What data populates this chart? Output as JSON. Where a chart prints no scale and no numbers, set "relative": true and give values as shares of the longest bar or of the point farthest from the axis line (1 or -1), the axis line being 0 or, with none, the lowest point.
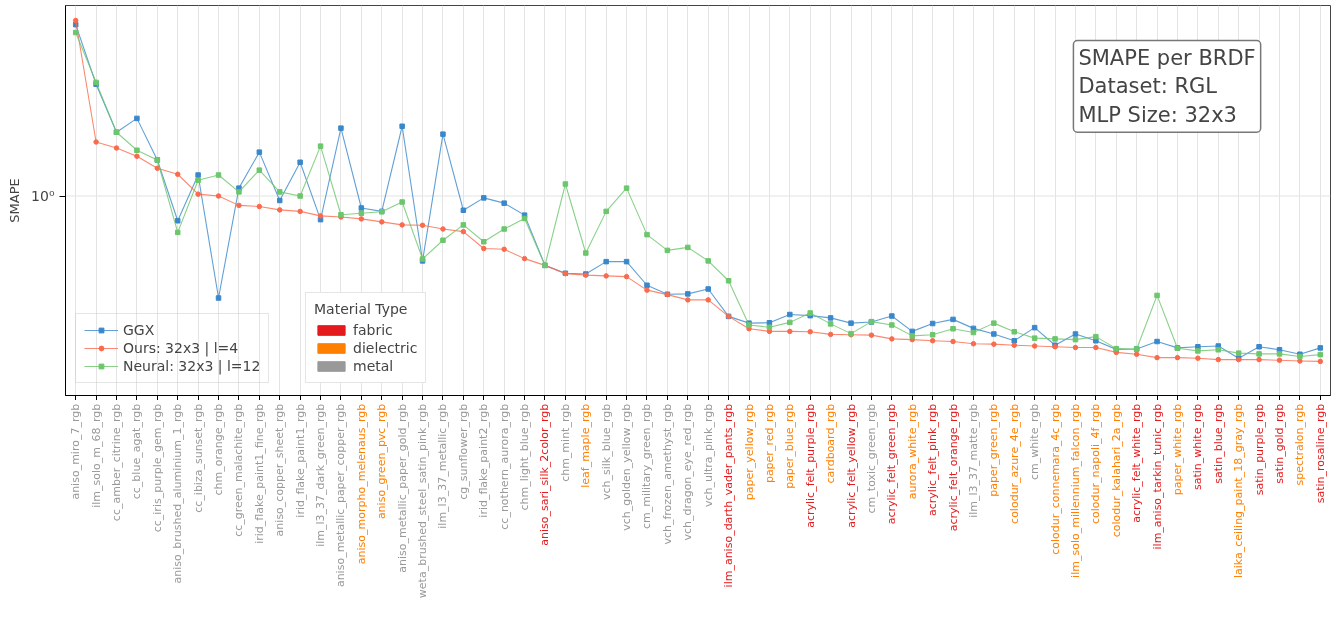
{
  "chart_data": {
    "type": "line",
    "title": "SMAPE per BRDF\nDataset: RGL\nMLP Size: 32x3",
    "ylabel": "SMAPE",
    "legend_title": "Material Type",
    "legend": "bottom left",
    "relative": true,
    "grid": "x",
    "ref_lines": [
      {
        "axis": "y",
        "value": 0.532,
        "label": "10⁰",
        "color": "#e4e4e4"
      }
    ],
    "categories": [
      "aniso_miro_7_rgb",
      "ilm_solo_m_68_rgb",
      "cc_amber_citrine_rgb",
      "cc_blue_agat_rgb",
      "cc_iris_purple_gem_rgb",
      "aniso_brushed_aluminium_1_rgb",
      "cc_ibiza_sunset_rgb",
      "chm_orange_rgb",
      "cc_green_malachite_rgb",
      "irid_flake_paint1_fine_rgb",
      "aniso_copper_sheet_rgb",
      "irid_flake_paint1_rgb",
      "ilm_l3_37_dark_green_rgb",
      "aniso_metallic_paper_copper_rgb",
      "aniso_morpho_melenaus_rgb",
      "aniso_green_pvc_rgb",
      "aniso_metallic_paper_gold_rgb",
      "weta_brushed_steel_satin_pink_rgb",
      "ilm_l3_37_metallic_rgb",
      "cg_sunflower_rgb",
      "irid_flake_paint2_rgb",
      "cc_nothern_aurora_rgb",
      "chm_light_blue_rgb",
      "aniso_sari_silk_2color_rgb",
      "chm_mint_rgb",
      "leaf_maple_rgb",
      "vch_silk_blue_rgb",
      "vch_golden_yellow_rgb",
      "cm_military_green_rgb",
      "vch_frozen_amethyst_rgb",
      "vch_dragon_eye_red_rgb",
      "vch_ultra_pink_rgb",
      "ilm_aniso_darth_vader_pants_rgb",
      "paper_yellow_rgb",
      "paper_red_rgb",
      "paper_blue_rgb",
      "acrylic_felt_purple_rgb",
      "cardboard_rgb",
      "acrylic_felt_yellow_rgb",
      "cm_toxic_green_rgb",
      "acrylic_felt_green_rgb",
      "aurora_white_rgb",
      "acrylic_felt_pink_rgb",
      "acrylic_felt_orange_rgb",
      "ilm_l3_37_matte_rgb",
      "paper_green_rgb",
      "colodur_azure_4e_rgb",
      "cm_white_rgb",
      "colodur_connemara_4c_rgb",
      "ilm_solo_millennium_falcon_rgb",
      "colodur_napoli_4f_rgb",
      "colodur_kalahari_2a_rgb",
      "acrylic_felt_white_rgb",
      "ilm_aniso_tarkin_tunic_rgb",
      "paper_white_rgb",
      "satin_white_rgb",
      "satin_blue_rgb",
      "laika_ceiling_paint_18_gray_rgb",
      "satin_purple_rgb",
      "satin_gold_rgb",
      "spectralon_rgb",
      "satin_rosaline_rgb"
    ],
    "colors": [
      "#999999",
      "#999999",
      "#999999",
      "#999999",
      "#999999",
      "#999999",
      "#999999",
      "#999999",
      "#999999",
      "#999999",
      "#999999",
      "#999999",
      "#999999",
      "#999999",
      "#ff7f00",
      "#ff7f00",
      "#999999",
      "#999999",
      "#999999",
      "#999999",
      "#999999",
      "#999999",
      "#999999",
      "#e41a1c",
      "#999999",
      "#ff7f00",
      "#999999",
      "#999999",
      "#999999",
      "#999999",
      "#999999",
      "#999999",
      "#e41a1c",
      "#ff7f00",
      "#ff7f00",
      "#ff7f00",
      "#e41a1c",
      "#ff7f00",
      "#e41a1c",
      "#999999",
      "#e41a1c",
      "#ff7f00",
      "#e41a1c",
      "#e41a1c",
      "#999999",
      "#ff7f00",
      "#ff7f00",
      "#999999",
      "#ff7f00",
      "#ff7f00",
      "#ff7f00",
      "#ff7f00",
      "#e41a1c",
      "#e41a1c",
      "#ff7f00",
      "#e41a1c",
      "#e41a1c",
      "#ff7f00",
      "#e41a1c",
      "#e41a1c",
      "#ff7f00",
      "#e41a1c"
    ],
    "series": [
      {
        "name": "GGX",
        "color": "#3a88cc",
        "marker": "square",
        "values": [
          0.989,
          0.83,
          0.702,
          0.739,
          0.628,
          0.466,
          0.588,
          0.26,
          0.553,
          0.649,
          0.52,
          0.622,
          0.469,
          0.713,
          0.5,
          0.491,
          0.718,
          0.359,
          0.697,
          0.494,
          0.527,
          0.513,
          0.481,
          0.347,
          0.326,
          0.324,
          0.357,
          0.357,
          0.294,
          0.27,
          0.271,
          0.284,
          0.211,
          0.193,
          0.194,
          0.216,
          0.213,
          0.207,
          0.193,
          0.196,
          0.212,
          0.171,
          0.192,
          0.203,
          0.179,
          0.164,
          0.146,
          0.181,
          0.134,
          0.164,
          0.146,
          0.123,
          0.124,
          0.144,
          0.127,
          0.13,
          0.132,
          0.0995,
          0.13,
          0.122,
          0.11,
          0.127
        ]
      },
      {
        "name": "Ours: 32x3 | l=4",
        "color": "#fa6a4c",
        "marker": "circle",
        "values": [
          1,
          0.676,
          0.66,
          0.638,
          0.606,
          0.59,
          0.537,
          0.532,
          0.507,
          0.504,
          0.495,
          0.491,
          0.479,
          0.476,
          0.471,
          0.463,
          0.455,
          0.454,
          0.444,
          0.437,
          0.392,
          0.39,
          0.365,
          0.347,
          0.325,
          0.321,
          0.319,
          0.317,
          0.281,
          0.269,
          0.255,
          0.255,
          0.211,
          0.178,
          0.171,
          0.171,
          0.17,
          0.163,
          0.162,
          0.161,
          0.151,
          0.149,
          0.146,
          0.144,
          0.138,
          0.137,
          0.134,
          0.132,
          0.13,
          0.128,
          0.128,
          0.115,
          0.11,
          0.101,
          0.101,
          0.0995,
          0.0957,
          0.0957,
          0.0957,
          0.0941,
          0.092,
          0.091
        ]
      },
      {
        "name": "Neural: 32x3 | l=12",
        "color": "#6cc66c",
        "marker": "square",
        "values": [
          0.968,
          0.835,
          0.702,
          0.654,
          0.628,
          0.435,
          0.574,
          0.588,
          0.543,
          0.601,
          0.543,
          0.532,
          0.665,
          0.482,
          0.486,
          0.49,
          0.516,
          0.364,
          0.414,
          0.455,
          0.41,
          0.444,
          0.472,
          0.347,
          0.564,
          0.38,
          0.491,
          0.553,
          0.429,
          0.387,
          0.395,
          0.359,
          0.306,
          0.188,
          0.182,
          0.195,
          0.22,
          0.191,
          0.165,
          0.197,
          0.188,
          0.159,
          0.162,
          0.178,
          0.168,
          0.193,
          0.17,
          0.153,
          0.151,
          0.149,
          0.157,
          0.125,
          0.124,
          0.267,
          0.126,
          0.119,
          0.122,
          0.113,
          0.111,
          0.111,
          0.104,
          0.109
        ]
      },
      {
        "name": "fabric",
        "type": "bar",
        "color": "#e41a1c",
        "values": [
          null,
          null,
          null,
          null,
          null,
          null,
          null,
          null,
          null,
          null,
          null,
          null,
          null,
          null,
          null,
          null,
          null,
          null,
          null,
          null,
          null,
          null,
          null,
          null,
          null,
          null,
          null,
          null,
          null,
          null,
          null,
          null,
          null,
          null,
          null,
          null,
          null,
          null,
          null,
          null,
          null,
          null,
          null,
          null,
          null,
          null,
          null,
          null,
          null,
          null,
          null,
          null,
          null,
          null,
          null,
          null,
          null,
          null,
          null,
          null,
          null,
          null
        ]
      },
      {
        "name": "dielectric",
        "type": "bar",
        "color": "#ff7f00",
        "values": [
          null,
          null,
          null,
          null,
          null,
          null,
          null,
          null,
          null,
          null,
          null,
          null,
          null,
          null,
          null,
          null,
          null,
          null,
          null,
          null,
          null,
          null,
          null,
          null,
          null,
          null,
          null,
          null,
          null,
          null,
          null,
          null,
          null,
          null,
          null,
          null,
          null,
          null,
          null,
          null,
          null,
          null,
          null,
          null,
          null,
          null,
          null,
          null,
          null,
          null,
          null,
          null,
          null,
          null,
          null,
          null,
          null,
          null,
          null,
          null,
          null,
          null
        ]
      },
      {
        "name": "metal",
        "type": "bar",
        "color": "#999999",
        "values": [
          null,
          null,
          null,
          null,
          null,
          null,
          null,
          null,
          null,
          null,
          null,
          null,
          null,
          null,
          null,
          null,
          null,
          null,
          null,
          null,
          null,
          null,
          null,
          null,
          null,
          null,
          null,
          null,
          null,
          null,
          null,
          null,
          null,
          null,
          null,
          null,
          null,
          null,
          null,
          null,
          null,
          null,
          null,
          null,
          null,
          null,
          null,
          null,
          null,
          null,
          null,
          null,
          null,
          null,
          null,
          null,
          null,
          null,
          null,
          null,
          null,
          null
        ]
      }
    ]
  }
}
